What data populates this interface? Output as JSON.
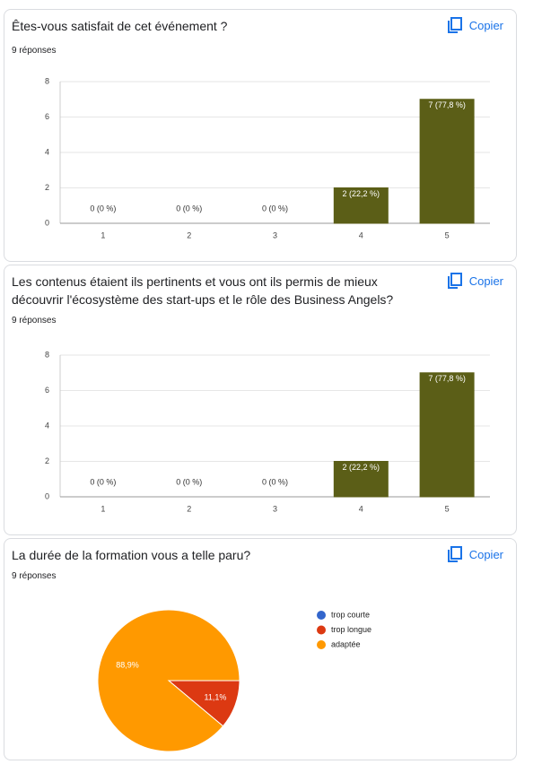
{
  "chart_data": [
    {
      "type": "bar",
      "title": "Êtes-vous satisfait de cet événement ?",
      "subtitle": "9 réponses",
      "action": "Copier",
      "categories": [
        "1",
        "2",
        "3",
        "4",
        "5"
      ],
      "values": [
        0,
        0,
        0,
        2,
        7
      ],
      "value_labels": [
        "0 (0 %)",
        "0 (0 %)",
        "0 (0 %)",
        "2 (22,2 %)",
        "7 (77,8 %)"
      ],
      "color": "#5b5e17",
      "ylim": [
        0,
        8
      ],
      "yticks": [
        0,
        2,
        4,
        6,
        8
      ],
      "grid": true
    },
    {
      "type": "bar",
      "title": "Les contenus étaient ils pertinents et vous ont ils permis de mieux découvrir l'écosystème des start-ups et le rôle des Business Angels?",
      "subtitle": "9 réponses",
      "action": "Copier",
      "categories": [
        "1",
        "2",
        "3",
        "4",
        "5"
      ],
      "values": [
        0,
        0,
        0,
        2,
        7
      ],
      "value_labels": [
        "0 (0 %)",
        "0 (0 %)",
        "0 (0 %)",
        "2 (22,2 %)",
        "7 (77,8 %)"
      ],
      "color": "#5b5e17",
      "ylim": [
        0,
        8
      ],
      "yticks": [
        0,
        2,
        4,
        6,
        8
      ],
      "grid": true
    },
    {
      "type": "pie",
      "title": "La durée de la formation vous a telle paru?",
      "subtitle": "9 réponses",
      "action": "Copier",
      "categories": [
        "trop courte",
        "trop longue",
        "adaptée"
      ],
      "values": [
        0,
        11.1,
        88.9
      ],
      "value_labels": [
        null,
        "11,1%",
        "88,9%"
      ],
      "colors": [
        "#3366cc",
        "#dc3912",
        "#ff9900"
      ],
      "legend": "right"
    }
  ]
}
